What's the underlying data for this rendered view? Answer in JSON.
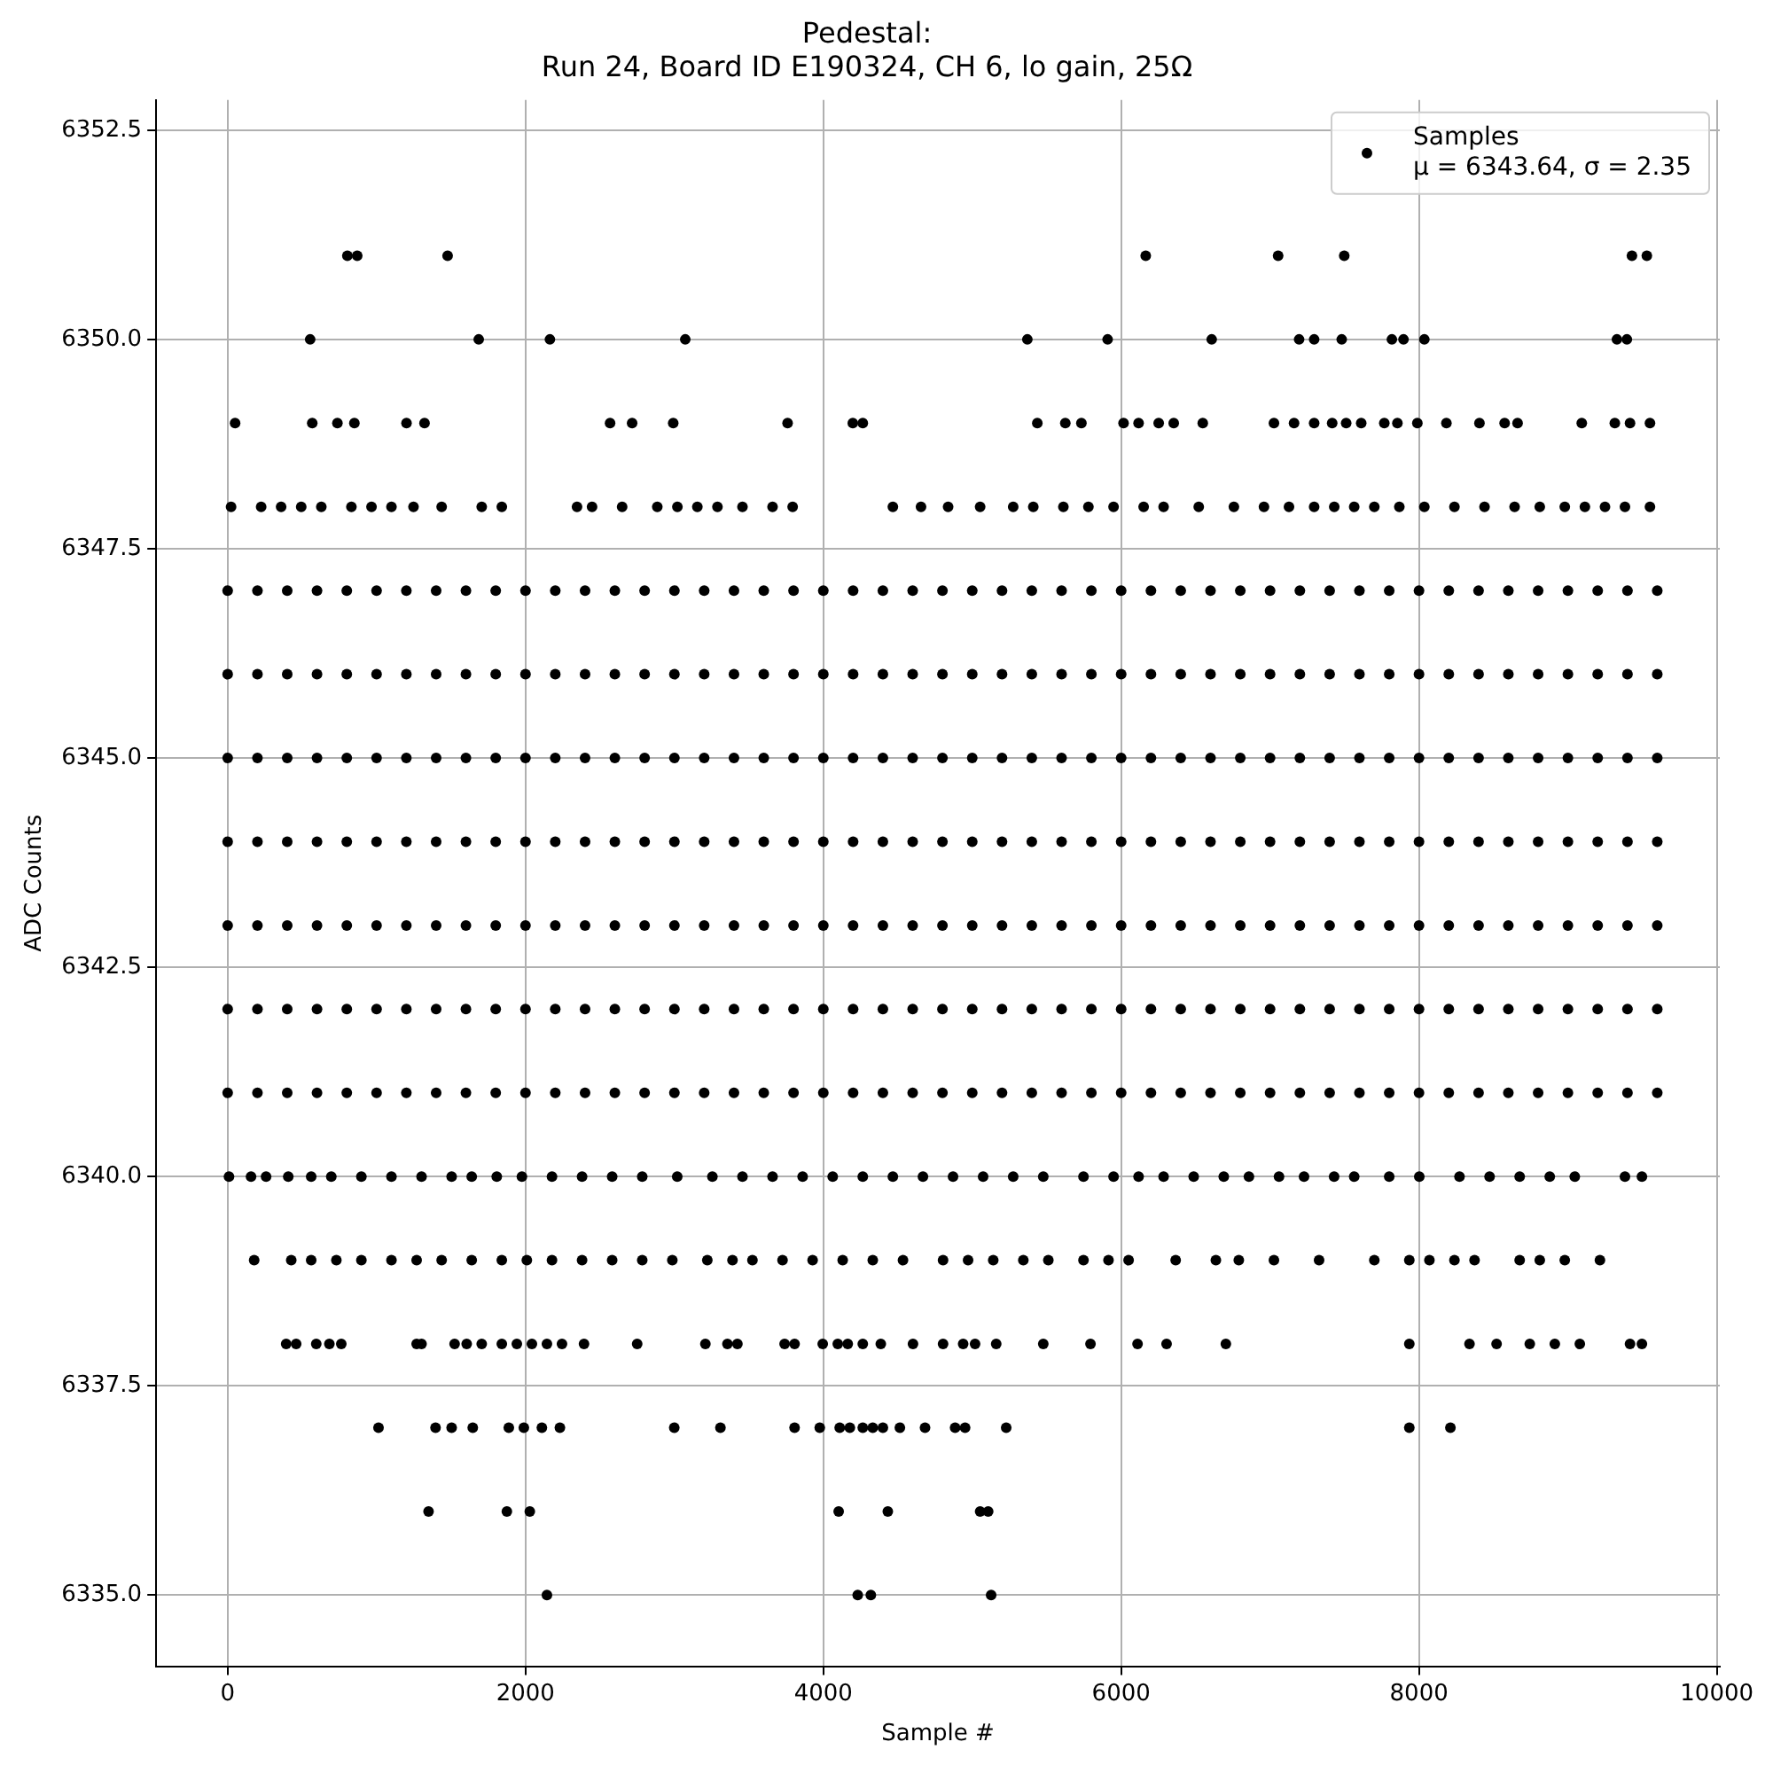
{
  "chart_data": {
    "type": "scatter",
    "title": "Pedestal:\nRun 24, Board ID E190324, CH 6, lo gain, 25Ω",
    "xlabel": "Sample #",
    "ylabel": "ADC Counts",
    "xlim": [
      -480,
      10020
    ],
    "xticks": [
      0,
      2000,
      4000,
      6000,
      8000,
      10000
    ],
    "ylim": [
      6334.15,
      6352.86
    ],
    "yticks": [
      {
        "value": 6335,
        "label": "6335.0"
      },
      {
        "value": 6337.5,
        "label": "6337.5"
      },
      {
        "value": 6340,
        "label": "6340.0"
      },
      {
        "value": 6342.5,
        "label": "6342.5"
      },
      {
        "value": 6345,
        "label": "6345.0"
      },
      {
        "value": 6347.5,
        "label": "6347.5"
      },
      {
        "value": 6350,
        "label": "6350.0"
      },
      {
        "value": 6352.5,
        "label": "6352.5"
      }
    ],
    "grid": true,
    "legend": "top right",
    "marker": "circle",
    "series": [
      {
        "name": "Samples\nμ = 6343.64, σ = 2.35",
        "color": "#000000",
        "x": [
          804,
          870,
          1477,
          6165,
          7054,
          7498,
          9430,
          9530,
          554,
          1686,
          2164,
          3073,
          5370,
          5909,
          6608,
          7195,
          7296,
          7481,
          7818,
          7896,
          8036,
          9329,
          9396,
          50,
          568,
          737,
          851,
          1201,
          1322,
          2568,
          2716,
          2992,
          3760,
          4198,
          4265,
          5437,
          5625,
          5733,
          6016,
          6117,
          6252,
          6353,
          6548,
          7026,
          7161,
          7296,
          7417,
          7511,
          7612,
          7767,
          7855,
          7989,
          8184,
          8406,
          8575,
          8662,
          9093,
          9315,
          9417,
          9551,
          23,
          225,
          359,
          494,
          629,
          831,
          966,
          1100,
          1248,
          1437,
          1706,
          1841,
          2346,
          2447,
          2649,
          2885,
          3020,
          3154,
          3289,
          3457,
          3659,
          3794,
          4467,
          4656,
          4838,
          5053,
          5275,
          5410,
          5612,
          5780,
          5949,
          6151,
          6285,
          6521,
          6757,
          6959,
          7127,
          7296,
          7431,
          7565,
          7700,
          7868,
          8036,
          8238,
          8440,
          8642,
          8811,
          8979,
          9114,
          9249,
          9383,
          9551,
          0,
          200,
          400,
          600,
          800,
          1000,
          1200,
          1400,
          1600,
          1800,
          2000,
          2200,
          2400,
          2600,
          2800,
          3000,
          3200,
          3400,
          3600,
          3800,
          4000,
          4200,
          4400,
          4600,
          4800,
          5000,
          5200,
          5400,
          5600,
          5800,
          6000,
          6200,
          6400,
          6600,
          6800,
          7000,
          7200,
          7400,
          7600,
          7800,
          8000,
          8200,
          8400,
          8600,
          8800,
          9000,
          9200,
          9400,
          9600,
          0,
          200,
          400,
          600,
          800,
          1000,
          1200,
          1400,
          1600,
          1800,
          2000,
          2200,
          2400,
          2600,
          2800,
          3000,
          3200,
          3400,
          3600,
          3800,
          4000,
          4200,
          4400,
          4600,
          4800,
          5000,
          5200,
          5400,
          5600,
          5800,
          6000,
          6200,
          6400,
          6600,
          6800,
          7000,
          7200,
          7400,
          7600,
          7800,
          8000,
          8200,
          8400,
          8600,
          8800,
          9000,
          9200,
          9400,
          9600,
          0,
          200,
          400,
          600,
          800,
          1000,
          1200,
          1400,
          1600,
          1800,
          2000,
          2200,
          2400,
          2600,
          2800,
          3000,
          3200,
          3400,
          3600,
          3800,
          4000,
          4200,
          4400,
          4600,
          4800,
          5000,
          5200,
          5400,
          5600,
          5800,
          6000,
          6200,
          6400,
          6600,
          6800,
          7000,
          7200,
          7400,
          7600,
          7800,
          8000,
          8200,
          8400,
          8600,
          8800,
          9000,
          9200,
          9400,
          9600,
          0,
          200,
          400,
          600,
          800,
          1000,
          1200,
          1400,
          1600,
          1800,
          2000,
          2200,
          2400,
          2600,
          2800,
          3000,
          3200,
          3400,
          3600,
          3800,
          4000,
          4200,
          4400,
          4600,
          4800,
          5000,
          5200,
          5400,
          5600,
          5800,
          6000,
          6200,
          6400,
          6600,
          6800,
          7000,
          7200,
          7400,
          7600,
          7800,
          8000,
          8200,
          8400,
          8600,
          8800,
          9000,
          9200,
          9400,
          9600,
          0,
          200,
          400,
          600,
          800,
          1000,
          1200,
          1400,
          1600,
          1800,
          2000,
          2200,
          2400,
          2600,
          2800,
          3000,
          3200,
          3400,
          3600,
          3800,
          4000,
          4200,
          4400,
          4600,
          4800,
          5000,
          5200,
          5400,
          5600,
          5800,
          6000,
          6200,
          6400,
          6600,
          6800,
          7000,
          7200,
          7400,
          7600,
          7800,
          8000,
          8200,
          8400,
          8600,
          8800,
          9000,
          9200,
          9400,
          9600,
          0,
          200,
          400,
          600,
          800,
          1000,
          1200,
          1400,
          1600,
          1800,
          2000,
          2200,
          2400,
          2600,
          2800,
          3000,
          3200,
          3400,
          3600,
          3800,
          4000,
          4200,
          4400,
          4600,
          4800,
          5000,
          5200,
          5400,
          5600,
          5800,
          6000,
          6200,
          6400,
          6600,
          6800,
          7000,
          7200,
          7400,
          7600,
          7800,
          8000,
          8200,
          8400,
          8600,
          8800,
          9000,
          9200,
          9400,
          9600,
          0,
          200,
          400,
          600,
          800,
          1000,
          1200,
          1400,
          1600,
          1800,
          2000,
          2200,
          2400,
          2600,
          2800,
          3000,
          3200,
          3400,
          3600,
          3800,
          4000,
          4200,
          4400,
          4600,
          4800,
          5000,
          5200,
          5400,
          5600,
          5800,
          6000,
          6200,
          6400,
          6600,
          6800,
          7000,
          7200,
          7400,
          7600,
          7800,
          8000,
          8200,
          8400,
          8600,
          8800,
          9000,
          9200,
          9400,
          9600,
          9,
          157,
          258,
          407,
          561,
          696,
          898,
          1100,
          1302,
          1504,
          1639,
          1807,
          1976,
          2178,
          2380,
          2582,
          2784,
          3019,
          3255,
          3457,
          3659,
          3861,
          4063,
          4265,
          4467,
          4669,
          4871,
          5073,
          5275,
          5477,
          5747,
          5949,
          6117,
          6285,
          6487,
          6689,
          6858,
          7060,
          7228,
          7430,
          7565,
          7800,
          8002,
          8272,
          8474,
          8676,
          8878,
          9046,
          9383,
          9497,
          178,
          427,
          561,
          730,
          898,
          1100,
          1269,
          1437,
          1639,
          1841,
          2009,
          2178,
          2380,
          2582,
          2784,
          2986,
          3221,
          3390,
          3524,
          3726,
          3928,
          4130,
          4332,
          4535,
          4804,
          4972,
          5141,
          5343,
          5511,
          5747,
          5915,
          6050,
          6366,
          6636,
          6790,
          7026,
          7329,
          7700,
          7935,
          8070,
          8238,
          8373,
          8676,
          8811,
          8979,
          9215,
          393,
          460,
          595,
          683,
          763,
          1269,
          1302,
          1524,
          1605,
          1706,
          1841,
          1942,
          2043,
          2144,
          2245,
          2393,
          2750,
          3208,
          3356,
          3423,
          3740,
          3807,
          3996,
          4097,
          4164,
          4265,
          4386,
          4602,
          4804,
          4939,
          5019,
          5161,
          5477,
          5794,
          6110,
          6305,
          6703,
          7935,
          8339,
          8521,
          8744,
          8912,
          9080,
          9417,
          9497,
          1013,
          1396,
          1504,
          1646,
          1888,
          1989,
          2110,
          2231,
          2999,
          3309,
          3807,
          3976,
          4110,
          4178,
          4265,
          4332,
          4400,
          4514,
          4683,
          4885,
          4952,
          5228,
          7935,
          8211,
          1349,
          1875,
          2029,
          4103,
          4433,
          5053,
          5107,
          2144,
          4231,
          4319,
          5127
        ],
        "values": [
          6351,
          6351,
          6351,
          6351,
          6351,
          6351,
          6351,
          6351,
          6350,
          6350,
          6350,
          6350,
          6350,
          6350,
          6350,
          6350,
          6350,
          6350,
          6350,
          6350,
          6350,
          6350,
          6350,
          6349,
          6349,
          6349,
          6349,
          6349,
          6349,
          6349,
          6349,
          6349,
          6349,
          6349,
          6349,
          6349,
          6349,
          6349,
          6349,
          6349,
          6349,
          6349,
          6349,
          6349,
          6349,
          6349,
          6349,
          6349,
          6349,
          6349,
          6349,
          6349,
          6349,
          6349,
          6349,
          6349,
          6349,
          6349,
          6349,
          6349,
          6348,
          6348,
          6348,
          6348,
          6348,
          6348,
          6348,
          6348,
          6348,
          6348,
          6348,
          6348,
          6348,
          6348,
          6348,
          6348,
          6348,
          6348,
          6348,
          6348,
          6348,
          6348,
          6348,
          6348,
          6348,
          6348,
          6348,
          6348,
          6348,
          6348,
          6348,
          6348,
          6348,
          6348,
          6348,
          6348,
          6348,
          6348,
          6348,
          6348,
          6348,
          6348,
          6348,
          6348,
          6348,
          6348,
          6348,
          6348,
          6348,
          6348,
          6348,
          6348,
          6347,
          6347,
          6347,
          6347,
          6347,
          6347,
          6347,
          6347,
          6347,
          6347,
          6347,
          6347,
          6347,
          6347,
          6347,
          6347,
          6347,
          6347,
          6347,
          6347,
          6347,
          6347,
          6347,
          6347,
          6347,
          6347,
          6347,
          6347,
          6347,
          6347,
          6347,
          6347,
          6347,
          6347,
          6347,
          6347,
          6347,
          6347,
          6347,
          6347,
          6347,
          6347,
          6347,
          6347,
          6347,
          6347,
          6347,
          6347,
          6347,
          6346,
          6346,
          6346,
          6346,
          6346,
          6346,
          6346,
          6346,
          6346,
          6346,
          6346,
          6346,
          6346,
          6346,
          6346,
          6346,
          6346,
          6346,
          6346,
          6346,
          6346,
          6346,
          6346,
          6346,
          6346,
          6346,
          6346,
          6346,
          6346,
          6346,
          6346,
          6346,
          6346,
          6346,
          6346,
          6346,
          6346,
          6346,
          6346,
          6346,
          6346,
          6346,
          6346,
          6346,
          6346,
          6346,
          6346,
          6346,
          6346,
          6345,
          6345,
          6345,
          6345,
          6345,
          6345,
          6345,
          6345,
          6345,
          6345,
          6345,
          6345,
          6345,
          6345,
          6345,
          6345,
          6345,
          6345,
          6345,
          6345,
          6345,
          6345,
          6345,
          6345,
          6345,
          6345,
          6345,
          6345,
          6345,
          6345,
          6345,
          6345,
          6345,
          6345,
          6345,
          6345,
          6345,
          6345,
          6345,
          6345,
          6345,
          6345,
          6345,
          6345,
          6345,
          6345,
          6345,
          6345,
          6345,
          6344,
          6344,
          6344,
          6344,
          6344,
          6344,
          6344,
          6344,
          6344,
          6344,
          6344,
          6344,
          6344,
          6344,
          6344,
          6344,
          6344,
          6344,
          6344,
          6344,
          6344,
          6344,
          6344,
          6344,
          6344,
          6344,
          6344,
          6344,
          6344,
          6344,
          6344,
          6344,
          6344,
          6344,
          6344,
          6344,
          6344,
          6344,
          6344,
          6344,
          6344,
          6344,
          6344,
          6344,
          6344,
          6344,
          6344,
          6344,
          6344,
          6343,
          6343,
          6343,
          6343,
          6343,
          6343,
          6343,
          6343,
          6343,
          6343,
          6343,
          6343,
          6343,
          6343,
          6343,
          6343,
          6343,
          6343,
          6343,
          6343,
          6343,
          6343,
          6343,
          6343,
          6343,
          6343,
          6343,
          6343,
          6343,
          6343,
          6343,
          6343,
          6343,
          6343,
          6343,
          6343,
          6343,
          6343,
          6343,
          6343,
          6343,
          6343,
          6343,
          6343,
          6343,
          6343,
          6343,
          6343,
          6343,
          6342,
          6342,
          6342,
          6342,
          6342,
          6342,
          6342,
          6342,
          6342,
          6342,
          6342,
          6342,
          6342,
          6342,
          6342,
          6342,
          6342,
          6342,
          6342,
          6342,
          6342,
          6342,
          6342,
          6342,
          6342,
          6342,
          6342,
          6342,
          6342,
          6342,
          6342,
          6342,
          6342,
          6342,
          6342,
          6342,
          6342,
          6342,
          6342,
          6342,
          6342,
          6342,
          6342,
          6342,
          6342,
          6342,
          6342,
          6342,
          6342,
          6341,
          6341,
          6341,
          6341,
          6341,
          6341,
          6341,
          6341,
          6341,
          6341,
          6341,
          6341,
          6341,
          6341,
          6341,
          6341,
          6341,
          6341,
          6341,
          6341,
          6341,
          6341,
          6341,
          6341,
          6341,
          6341,
          6341,
          6341,
          6341,
          6341,
          6341,
          6341,
          6341,
          6341,
          6341,
          6341,
          6341,
          6341,
          6341,
          6341,
          6341,
          6341,
          6341,
          6341,
          6341,
          6341,
          6341,
          6341,
          6341,
          6340,
          6340,
          6340,
          6340,
          6340,
          6340,
          6340,
          6340,
          6340,
          6340,
          6340,
          6340,
          6340,
          6340,
          6340,
          6340,
          6340,
          6340,
          6340,
          6340,
          6340,
          6340,
          6340,
          6340,
          6340,
          6340,
          6340,
          6340,
          6340,
          6340,
          6340,
          6340,
          6340,
          6340,
          6340,
          6340,
          6340,
          6340,
          6340,
          6340,
          6340,
          6340,
          6340,
          6340,
          6340,
          6340,
          6340,
          6340,
          6340,
          6340,
          6339,
          6339,
          6339,
          6339,
          6339,
          6339,
          6339,
          6339,
          6339,
          6339,
          6339,
          6339,
          6339,
          6339,
          6339,
          6339,
          6339,
          6339,
          6339,
          6339,
          6339,
          6339,
          6339,
          6339,
          6339,
          6339,
          6339,
          6339,
          6339,
          6339,
          6339,
          6339,
          6339,
          6339,
          6339,
          6339,
          6339,
          6339,
          6339,
          6339,
          6339,
          6339,
          6339,
          6339,
          6339,
          6339,
          6338,
          6338,
          6338,
          6338,
          6338,
          6338,
          6338,
          6338,
          6338,
          6338,
          6338,
          6338,
          6338,
          6338,
          6338,
          6338,
          6338,
          6338,
          6338,
          6338,
          6338,
          6338,
          6338,
          6338,
          6338,
          6338,
          6338,
          6338,
          6338,
          6338,
          6338,
          6338,
          6338,
          6338,
          6338,
          6338,
          6338,
          6338,
          6338,
          6338,
          6338,
          6338,
          6338,
          6338,
          6338,
          6337,
          6337,
          6337,
          6337,
          6337,
          6337,
          6337,
          6337,
          6337,
          6337,
          6337,
          6337,
          6337,
          6337,
          6337,
          6337,
          6337,
          6337,
          6337,
          6337,
          6337,
          6337,
          6337,
          6337,
          6336,
          6336,
          6336,
          6336,
          6336,
          6336,
          6336,
          6335,
          6335,
          6335,
          6335
        ]
      }
    ]
  }
}
